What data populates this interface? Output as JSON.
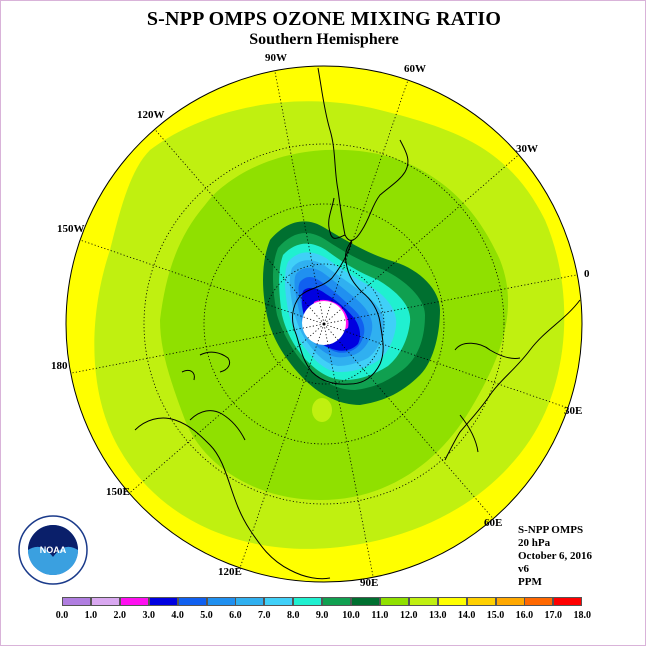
{
  "title": "S-NPP OMPS OZONE MIXING RATIO",
  "subtitle": "Southern Hemisphere",
  "longitude_labels": [
    "90W",
    "60W",
    "30W",
    "0",
    "30E",
    "60E",
    "90E",
    "120E",
    "150E",
    "180",
    "150W",
    "120W"
  ],
  "info": {
    "instrument": "S-NPP OMPS",
    "level": "20 hPa",
    "date": "October 6, 2016",
    "version": "v6",
    "units": "PPM"
  },
  "logo_text": "NOAA",
  "colorbar": {
    "labels": [
      "0.0",
      "1.0",
      "2.0",
      "3.0",
      "4.0",
      "5.0",
      "6.0",
      "7.0",
      "8.0",
      "9.0",
      "10.0",
      "11.0",
      "12.0",
      "13.0",
      "14.0",
      "15.0",
      "16.0",
      "17.0",
      "18.0"
    ],
    "colors": [
      "#b07ee0",
      "#d9a8f0",
      "#ff10f0",
      "#0000e0",
      "#1060f0",
      "#2090f0",
      "#30b0f0",
      "#40d0f8",
      "#20f0d0",
      "#10a050",
      "#007030",
      "#90e000",
      "#c0f010",
      "#ffff00",
      "#ffd000",
      "#ffa800",
      "#ff6800",
      "#ff0000",
      "#8a5a40"
    ]
  },
  "colors": {
    "outer_ring": "#ffff00",
    "band_12": "#c0f010",
    "band_11": "#90e000",
    "band_10": "#007030",
    "band_9": "#10a050",
    "band_8": "#20f0d0",
    "band_7": "#40d0f8",
    "band_6": "#30b0f0",
    "band_5": "#2090f0",
    "band_4": "#1060f0",
    "band_3": "#0000e0",
    "band_2": "#ff10f0"
  }
}
